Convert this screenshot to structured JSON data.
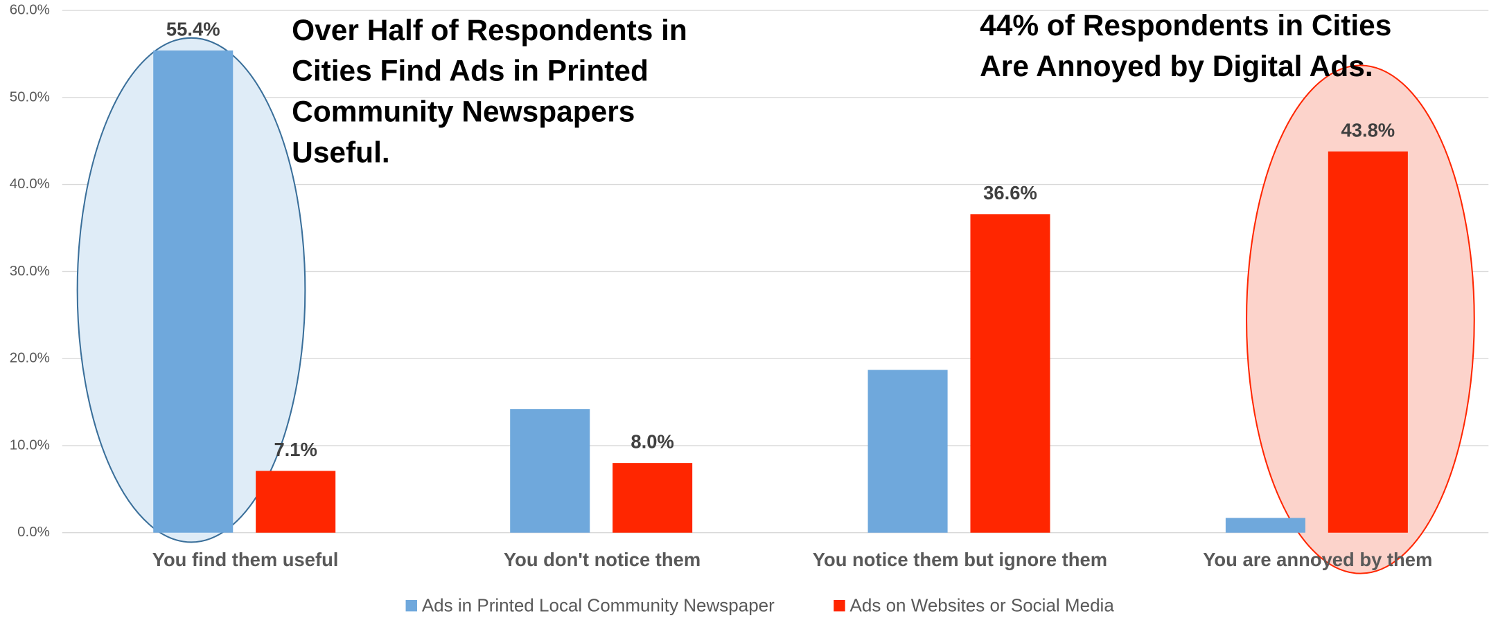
{
  "chart_data": {
    "type": "bar",
    "categories": [
      "You find them useful",
      "You don't notice them",
      "You notice them but ignore them",
      "You are annoyed by them"
    ],
    "series": [
      {
        "name": "Ads in Printed Local Community Newspaper",
        "color": "#6fa8dc",
        "values": [
          55.4,
          14.2,
          18.7,
          1.7
        ],
        "value_labels": [
          "55.4%",
          null,
          null,
          null
        ]
      },
      {
        "name": "Ads on Websites or Social Media",
        "color": "#ff2600",
        "values": [
          7.1,
          8.0,
          36.6,
          43.8
        ],
        "value_labels": [
          "7.1%",
          "8.0%",
          "36.6%",
          "43.8%"
        ]
      }
    ],
    "ylim": [
      0,
      60
    ],
    "yticks": [
      {
        "value": 0,
        "label": "0.0%"
      },
      {
        "value": 10,
        "label": "10.0%"
      },
      {
        "value": 20,
        "label": "20.0%"
      },
      {
        "value": 30,
        "label": "30.0%"
      },
      {
        "value": 40,
        "label": "40.0%"
      },
      {
        "value": 50,
        "label": "50.0%"
      },
      {
        "value": 60,
        "label": "60.0%"
      }
    ],
    "grid": true,
    "legend": "bottom",
    "annotations": [
      {
        "lines": [
          "Over Half of Respondents in",
          "Cities Find Ads in Printed",
          "Community Newspapers",
          "Useful."
        ]
      },
      {
        "lines": [
          "44% of Respondents in Cities",
          "Are Annoyed by Digital Ads."
        ]
      }
    ]
  }
}
